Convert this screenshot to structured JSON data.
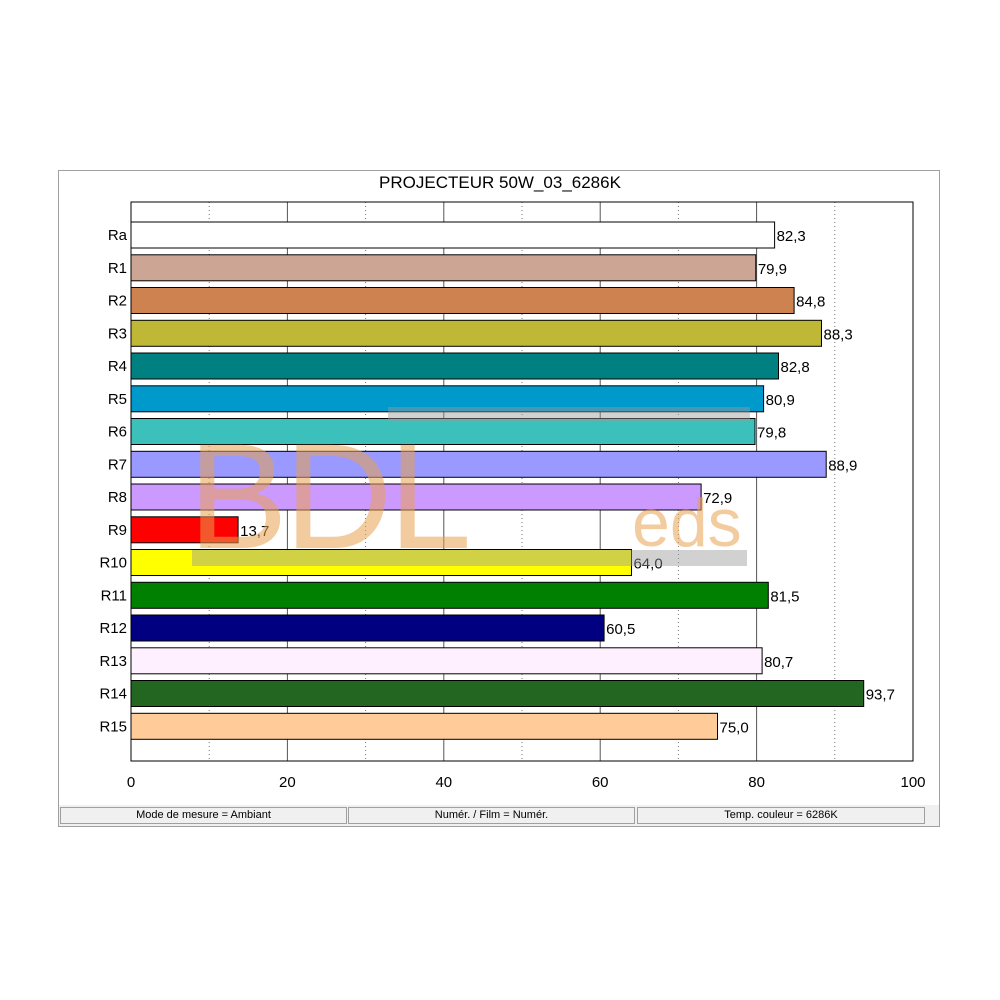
{
  "chart_data": {
    "type": "bar",
    "orientation": "horizontal",
    "title": "PROJECTEUR 50W_03_6286K",
    "xlim": [
      0,
      100
    ],
    "xticks": [
      "0",
      "20",
      "40",
      "60",
      "80",
      "100"
    ],
    "grid": true,
    "categories": [
      "Ra",
      "R1",
      "R2",
      "R3",
      "R4",
      "R5",
      "R6",
      "R7",
      "R8",
      "R9",
      "R10",
      "R11",
      "R12",
      "R13",
      "R14",
      "R15"
    ],
    "values": [
      82.3,
      79.9,
      84.8,
      88.3,
      82.8,
      80.9,
      79.8,
      88.9,
      72.9,
      13.7,
      64.0,
      81.5,
      60.5,
      80.7,
      93.7,
      75.0
    ],
    "value_labels": [
      "82,3",
      "79,9",
      "84,8",
      "88,3",
      "82,8",
      "80,9",
      "79,8",
      "88,9",
      "72,9",
      "13,7",
      "64,0",
      "81,5",
      "60,5",
      "80,7",
      "93,7",
      "75,0"
    ],
    "colors": [
      "#ffffff",
      "#cda595",
      "#cd8250",
      "#bfb736",
      "#008080",
      "#0099cc",
      "#3cc0bc",
      "#9999ff",
      "#cc99ff",
      "#ff0000",
      "#ffff00",
      "#008000",
      "#000080",
      "#fff0ff",
      "#226622",
      "#ffcc99"
    ]
  },
  "watermark": {
    "text_main": "BDL",
    "text_sub": "eds"
  },
  "status": {
    "mode": "Mode de mesure = Ambiant",
    "film": "Numér. / Film = Numér.",
    "temp": "Temp. couleur = 6286K"
  }
}
